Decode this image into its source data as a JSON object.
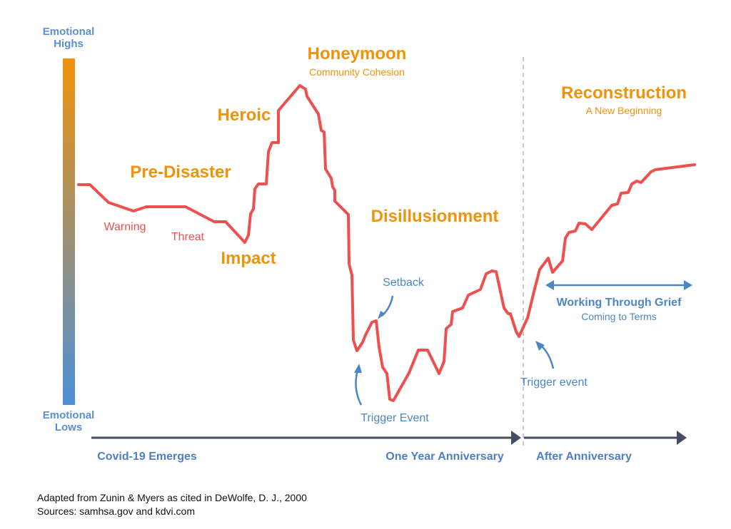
{
  "axis": {
    "top_label": [
      "Emotional",
      "Highs"
    ],
    "bottom_label": [
      "Emotional",
      "Lows"
    ],
    "gradient_top": "#f0920a",
    "gradient_bottom": "#4d8fd6"
  },
  "phases": {
    "pre_disaster": "Pre-Disaster",
    "impact": "Impact",
    "heroic": "Heroic",
    "honeymoon": "Honeymoon",
    "honeymoon_sub": "Community Cohesion",
    "disillusionment": "Disillusionment",
    "reconstruction": "Reconstruction",
    "reconstruction_sub": "A New Beginning"
  },
  "events": {
    "warning": "Warning",
    "threat": "Threat",
    "setback": "Setback",
    "trigger_event_1": "Trigger Event",
    "trigger_event_2": "Trigger event",
    "working_through_grief": "Working Through Grief",
    "coming_to_terms": "Coming to Terms"
  },
  "timeline": {
    "start": "Covid-19 Emerges",
    "anniversary": "One Year Anniversary",
    "after": "After Anniversary"
  },
  "footer": {
    "citation": "Adapted from Zunin & Myers as cited in DeWolfe, D. J., 2000",
    "sources": "Sources: samhsa.gov and kdvi.com"
  },
  "colors": {
    "curve": "#ee4f4f",
    "phase": "#f0920a",
    "annotation": "#4d86c4",
    "timeline": "#444e60",
    "divider": "#b5b5b5"
  }
}
